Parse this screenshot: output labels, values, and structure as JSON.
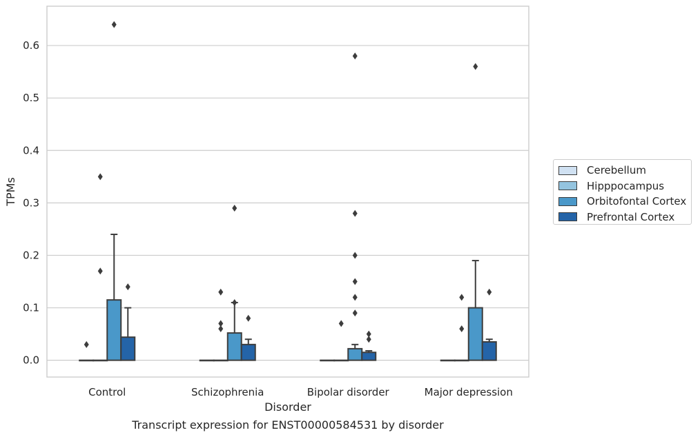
{
  "chart_data": {
    "type": "bar",
    "title": "Transcript expression for ENST00000584531 by disorder",
    "xlabel": "Disorder",
    "ylabel": "TPMs",
    "categories": [
      "Control",
      "Schizophrenia",
      "Bipolar disorder",
      "Major depression"
    ],
    "yticks": [
      "0.0",
      "0.1",
      "0.2",
      "0.3",
      "0.4",
      "0.5",
      "0.6"
    ],
    "ylim": [
      -0.032,
      0.675
    ],
    "grid": true,
    "legend_position": "right",
    "series": [
      {
        "name": "Cerebellum",
        "color": "#d0e1f2",
        "values": [
          0,
          0,
          0,
          0
        ],
        "whisker": [
          0,
          0,
          0,
          0
        ],
        "outliers": [
          [
            0.03
          ],
          [],
          [],
          []
        ]
      },
      {
        "name": "Hipppocampus",
        "color": "#94c4df",
        "values": [
          0,
          0,
          0,
          0
        ],
        "whisker": [
          0,
          0,
          0,
          0
        ],
        "outliers": [
          [
            0.17,
            0.35
          ],
          [
            0.06,
            0.07,
            0.13
          ],
          [
            0.07
          ],
          [
            0.06,
            0.12
          ]
        ]
      },
      {
        "name": "Orbitofontal Cortex",
        "color": "#4a98c9",
        "values": [
          0.115,
          0.052,
          0.022,
          0.1
        ],
        "whisker": [
          0.24,
          0.11,
          0.03,
          0.19
        ],
        "outliers": [
          [
            0.64
          ],
          [
            0.11,
            0.29
          ],
          [
            0.09,
            0.12,
            0.15,
            0.2,
            0.28,
            0.58
          ],
          [
            0.56
          ]
        ]
      },
      {
        "name": "Prefrontal Cortex",
        "color": "#2464a8",
        "values": [
          0.044,
          0.03,
          0.015,
          0.035
        ],
        "whisker": [
          0.1,
          0.04,
          0.018,
          0.04
        ],
        "outliers": [
          [
            0.14
          ],
          [
            0.08
          ],
          [
            0.04,
            0.05
          ],
          [
            0.13
          ]
        ]
      }
    ]
  }
}
